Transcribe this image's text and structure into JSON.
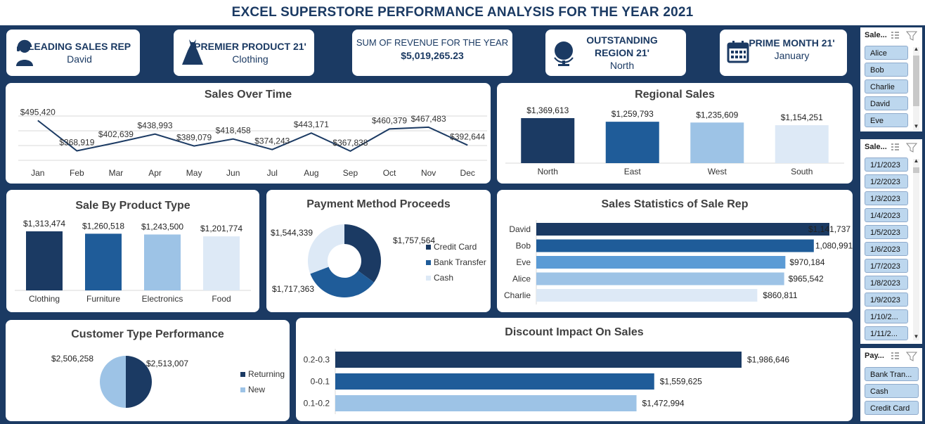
{
  "title": "EXCEL SUPERSTORE PERFORMANCE ANALYSIS FOR THE YEAR 2021",
  "kpis": [
    {
      "label": "LEADING  SALES REP",
      "value": "David",
      "icon": "sales-rep-icon"
    },
    {
      "label": "PREMIER PRODUCT 21'",
      "value": "Clothing",
      "icon": "dress-icon"
    },
    {
      "label": "SUM OF REVENUE FOR THE YEAR",
      "value": "$5,019,265.23",
      "icon": ""
    },
    {
      "label": "OUTSTANDING REGION 21'",
      "value": "North",
      "icon": "globe-icon"
    },
    {
      "label": "PRIME MONTH 21'",
      "value": "January",
      "icon": "calendar-icon"
    }
  ],
  "colors": {
    "dark": "#1b3a63",
    "mid": "#1f5c99",
    "light": "#9dc3e6",
    "lighter": "#dde9f6",
    "bright": "#5b9bd5"
  },
  "chart_data": [
    {
      "id": "sales-over-time",
      "type": "line",
      "title": "Sales Over Time",
      "categories": [
        "Jan",
        "Feb",
        "Mar",
        "Apr",
        "May",
        "Jun",
        "Jul",
        "Aug",
        "Sep",
        "Oct",
        "Nov",
        "Dec"
      ],
      "values": [
        495420,
        368919,
        402639,
        438993,
        389079,
        418458,
        374243,
        443171,
        367838,
        460379,
        467483,
        392644
      ],
      "labels": [
        "$495,420",
        "$368,919",
        "$402,639",
        "$438,993",
        "$389,079",
        "$418,458",
        "$374,243",
        "$443,171",
        "$367,838",
        "$460,379",
        "$467,483",
        "$392,644"
      ],
      "grid": true
    },
    {
      "id": "regional-sales",
      "type": "bar",
      "title": "Regional Sales",
      "categories": [
        "North",
        "East",
        "West",
        "South"
      ],
      "values": [
        1369613,
        1259793,
        1235609,
        1154251
      ],
      "labels": [
        "$1,369,613",
        "$1,259,793",
        "$1,235,609",
        "$1,154,251"
      ]
    },
    {
      "id": "sale-by-product",
      "type": "bar",
      "title": "Sale By Product Type",
      "categories": [
        "Clothing",
        "Furniture",
        "Electronics",
        "Food"
      ],
      "values": [
        1313474,
        1260518,
        1243500,
        1201774
      ],
      "labels": [
        "$1,313,474",
        "$1,260,518",
        "$1,243,500",
        "$1,201,774"
      ]
    },
    {
      "id": "payment-method",
      "type": "pie",
      "title": "Payment Method Proceeds",
      "categories": [
        "Credit Card",
        "Bank Transfer",
        "Cash"
      ],
      "values": [
        1757564,
        1717363,
        1544339
      ],
      "labels": [
        "$1,757,564",
        "$1,717,363",
        "$1,544,339"
      ],
      "legend": "right"
    },
    {
      "id": "sales-rep-stats",
      "type": "bar",
      "title": "Sales Statistics of Sale Rep",
      "categories": [
        "David",
        "Bob",
        "Eve",
        "Alice",
        "Charlie"
      ],
      "values": [
        1141737,
        1080991,
        970184,
        965542,
        860811
      ],
      "labels": [
        "$1,141,737",
        "1,080,991",
        "$970,184",
        "$965,542",
        "$860,811"
      ]
    },
    {
      "id": "customer-type",
      "type": "pie",
      "title": "Customer Type Performance",
      "categories": [
        "Returning",
        "New"
      ],
      "values": [
        2513007,
        2506258
      ],
      "labels": [
        "$2,513,007",
        "$2,506,258"
      ],
      "legend": "right"
    },
    {
      "id": "discount-impact",
      "type": "bar",
      "title": "Discount Impact On Sales",
      "categories": [
        "0.2-0.3",
        "0-0.1",
        "0.1-0.2"
      ],
      "values": [
        1986646,
        1559625,
        1472994
      ],
      "labels": [
        "$1,986,646",
        "$1,559,625",
        "$1,472,994"
      ]
    }
  ],
  "slicers": {
    "rep": {
      "title": "Sale...",
      "items": [
        "Alice",
        "Bob",
        "Charlie",
        "David",
        "Eve"
      ]
    },
    "date": {
      "title": "Sale...",
      "items": [
        "1/1/2023",
        "1/2/2023",
        "1/3/2023",
        "1/4/2023",
        "1/5/2023",
        "1/6/2023",
        "1/7/2023",
        "1/8/2023",
        "1/9/2023",
        "1/10/2...",
        "1/11/2..."
      ]
    },
    "payment": {
      "title": "Pay...",
      "items": [
        "Bank Tran...",
        "Cash",
        "Credit Card"
      ]
    }
  }
}
